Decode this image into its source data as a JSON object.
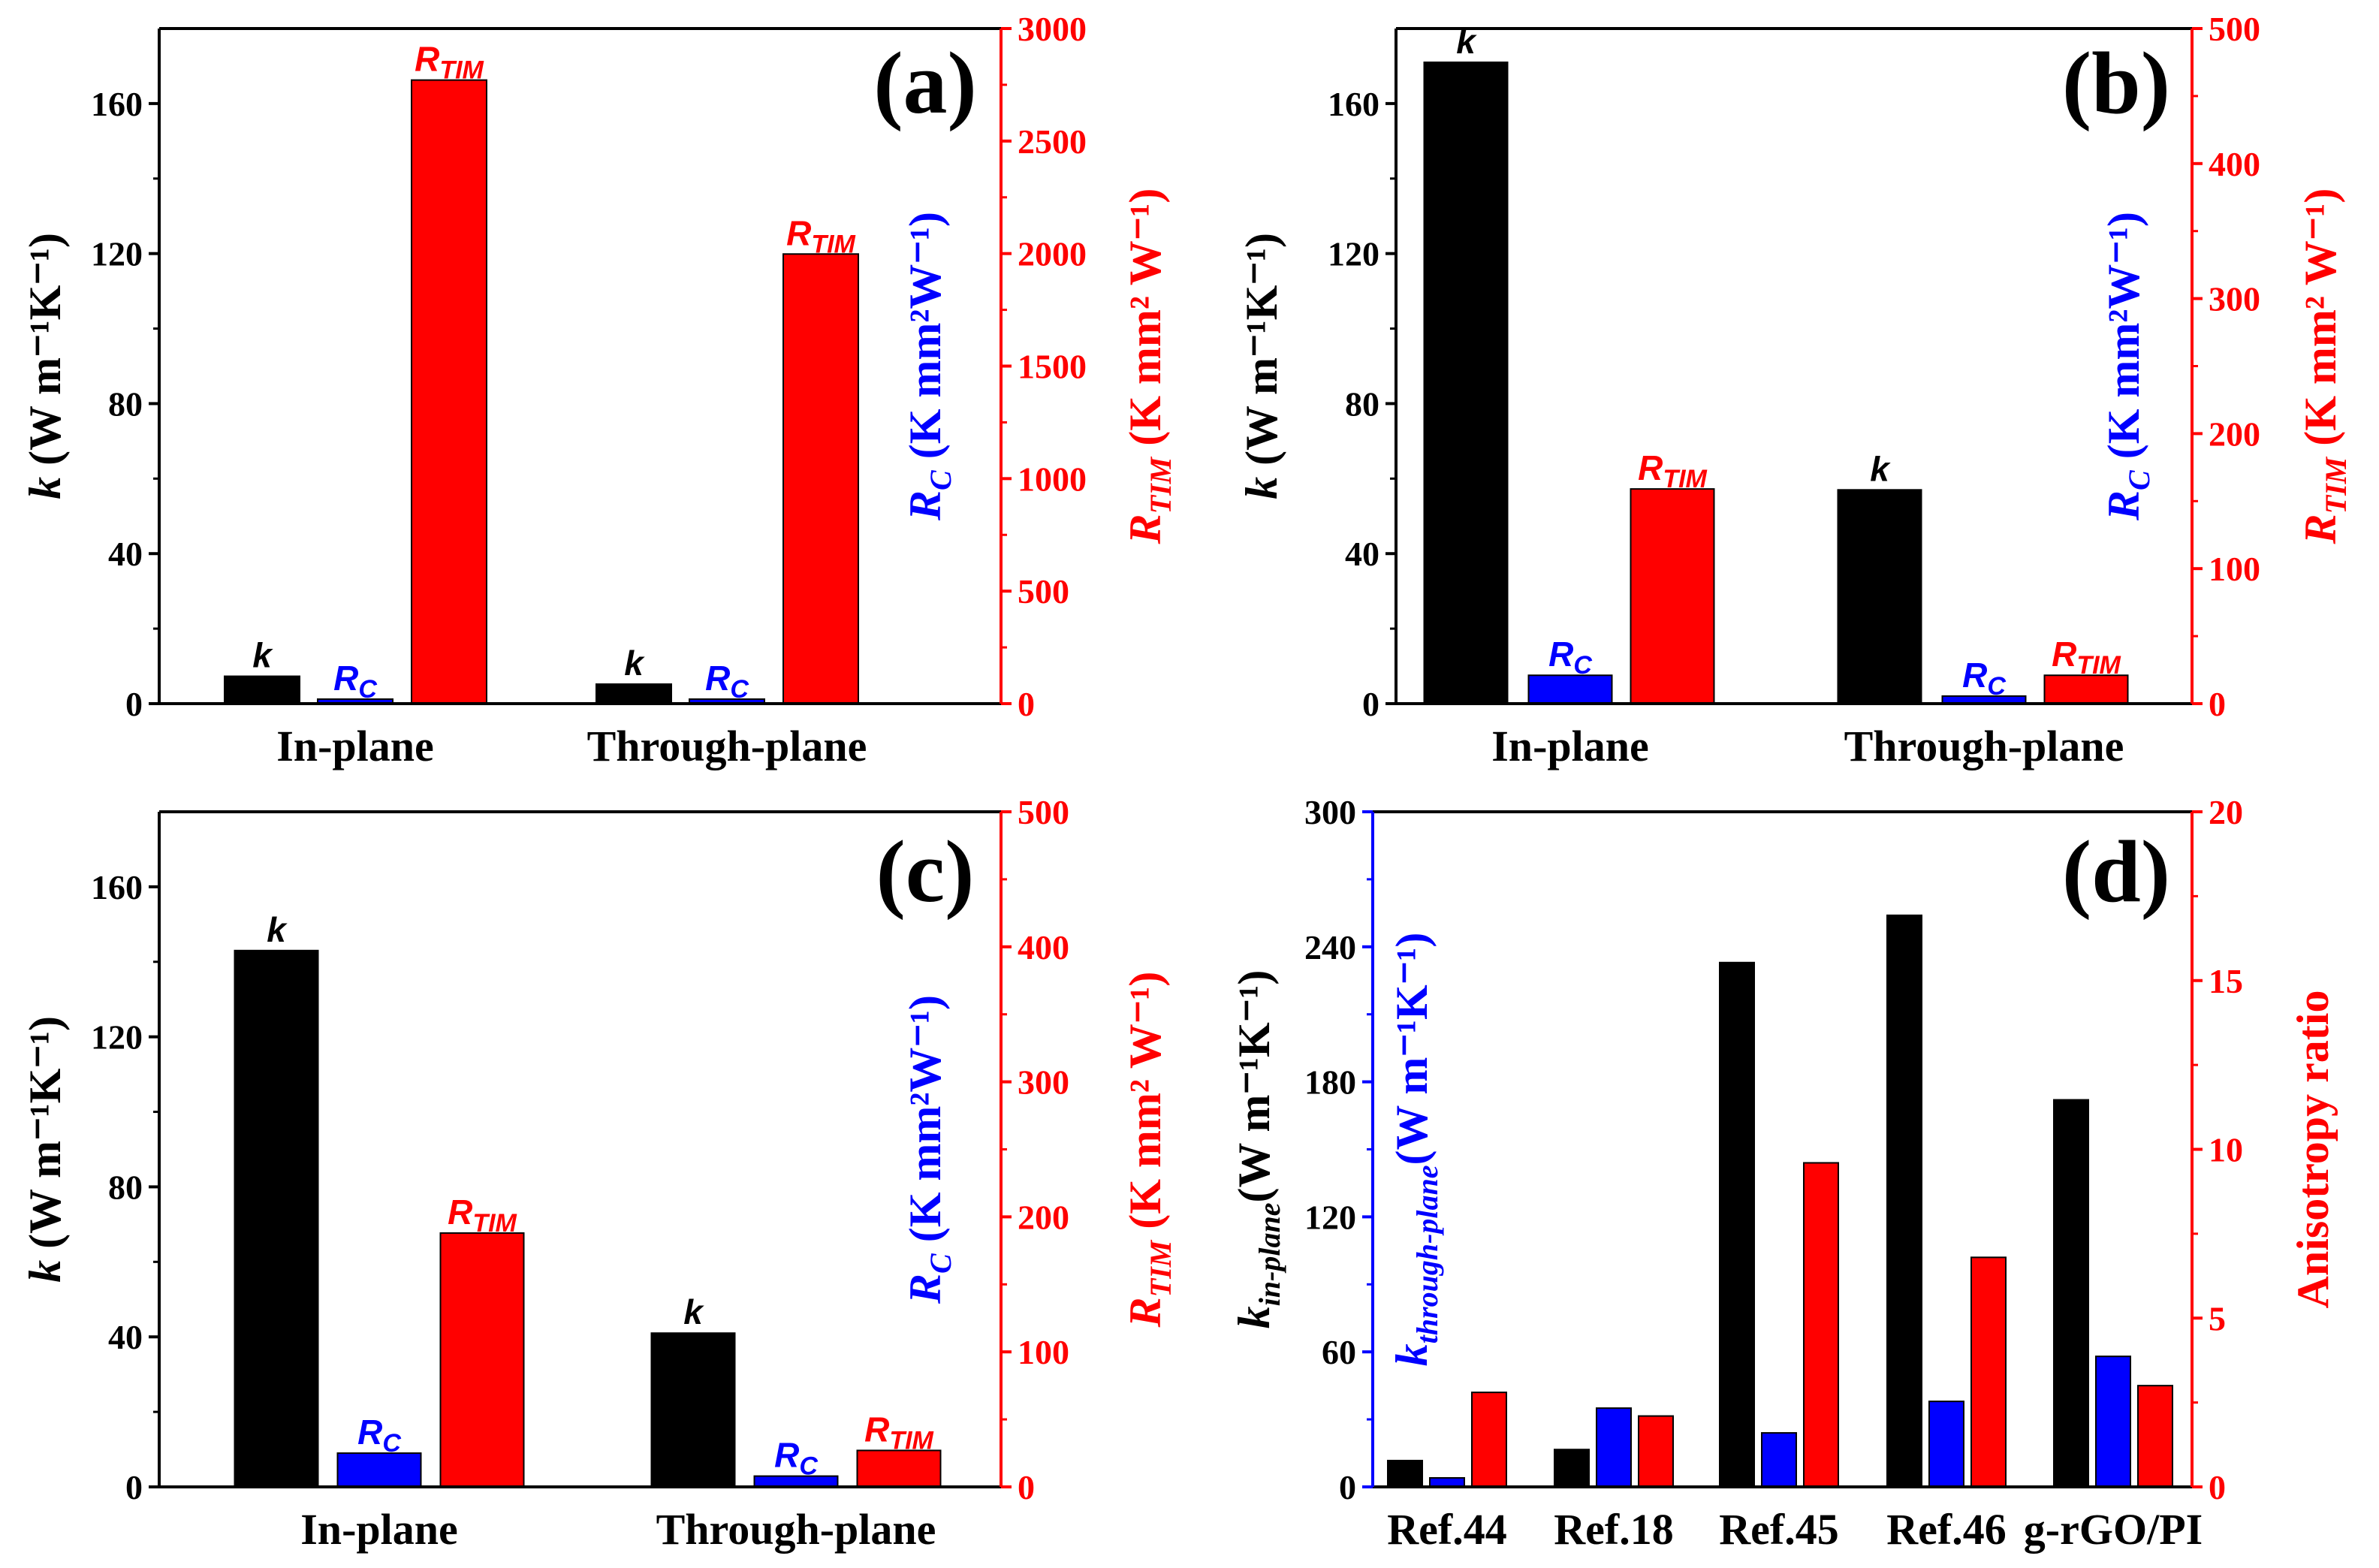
{
  "colors": {
    "k": "#000000",
    "rc": "#0000ff",
    "rtim": "#ff0000",
    "axis": "#000000"
  },
  "chart_data": [
    {
      "type": "bar",
      "panel": "(a)",
      "categories": [
        "In-plane",
        "Through-plane"
      ],
      "left_axis": {
        "title": {
          "symbol": "k",
          "subscript": "",
          "unit": " (W m⁻¹K⁻¹)"
        },
        "ylim": [
          0,
          180
        ],
        "ticks": [
          0,
          40,
          80,
          120,
          160
        ]
      },
      "right_axis": {
        "titles": [
          {
            "symbol": "R",
            "subscript": "C",
            "unit": " (K mm²W⁻¹)",
            "color": "rc"
          },
          {
            "symbol": "R",
            "subscript": "TIM",
            "unit": " (K mm² W⁻¹)",
            "color": "rtim"
          }
        ],
        "ylim": [
          0,
          3000
        ],
        "ticks": [
          0,
          500,
          1000,
          1500,
          2000,
          2500,
          3000
        ]
      },
      "series": [
        {
          "name": "k",
          "label_symbol": "k",
          "label_sub": "",
          "axis": "left",
          "color": "k",
          "values": [
            7.3,
            5.2
          ]
        },
        {
          "name": "R_C",
          "label_symbol": "R",
          "label_sub": "C",
          "axis": "right",
          "color": "rc",
          "values": [
            20,
            20
          ]
        },
        {
          "name": "R_TIM",
          "label_symbol": "R",
          "label_sub": "TIM",
          "axis": "right",
          "color": "rtim",
          "values": [
            2771,
            1998
          ]
        }
      ]
    },
    {
      "type": "bar",
      "panel": "(b)",
      "categories": [
        "In-plane",
        "Through-plane"
      ],
      "left_axis": {
        "title": {
          "symbol": "k",
          "subscript": "",
          "unit": " (W m⁻¹K⁻¹)"
        },
        "ylim": [
          0,
          180
        ],
        "ticks": [
          0,
          40,
          80,
          120,
          160
        ]
      },
      "right_axis": {
        "titles": [
          {
            "symbol": "R",
            "subscript": "C",
            "unit": " (K mm²W⁻¹)",
            "color": "rc"
          },
          {
            "symbol": "R",
            "subscript": "TIM",
            "unit": " (K mm² W⁻¹)",
            "color": "rtim"
          }
        ],
        "ylim": [
          0,
          500
        ],
        "ticks": [
          0,
          100,
          200,
          300,
          400,
          500
        ]
      },
      "series": [
        {
          "name": "k",
          "label_symbol": "k",
          "label_sub": "",
          "axis": "left",
          "color": "k",
          "values": [
            171,
            57
          ]
        },
        {
          "name": "R_C",
          "label_symbol": "R",
          "label_sub": "C",
          "axis": "right",
          "color": "rc",
          "values": [
            21,
            5.6
          ]
        },
        {
          "name": "R_TIM",
          "label_symbol": "R",
          "label_sub": "TIM",
          "axis": "right",
          "color": "rtim",
          "values": [
            159,
            21
          ]
        }
      ]
    },
    {
      "type": "bar",
      "panel": "(c)",
      "categories": [
        "In-plane",
        "Through-plane"
      ],
      "left_axis": {
        "title": {
          "symbol": "k",
          "subscript": "",
          "unit": " (W m⁻¹K⁻¹)"
        },
        "ylim": [
          0,
          180
        ],
        "ticks": [
          0,
          40,
          80,
          120,
          160
        ]
      },
      "right_axis": {
        "titles": [
          {
            "symbol": "R",
            "subscript": "C",
            "unit": " (K mm²W⁻¹)",
            "color": "rc"
          },
          {
            "symbol": "R",
            "subscript": "TIM",
            "unit": " (K mm² W⁻¹)",
            "color": "rtim"
          }
        ],
        "ylim": [
          0,
          500
        ],
        "ticks": [
          0,
          100,
          200,
          300,
          400,
          500
        ]
      },
      "series": [
        {
          "name": "k",
          "label_symbol": "k",
          "label_sub": "",
          "axis": "left",
          "color": "k",
          "values": [
            143,
            41
          ]
        },
        {
          "name": "R_C",
          "label_symbol": "R",
          "label_sub": "C",
          "axis": "right",
          "color": "rc",
          "values": [
            25,
            8
          ]
        },
        {
          "name": "R_TIM",
          "label_symbol": "R",
          "label_sub": "TIM",
          "axis": "right",
          "color": "rtim",
          "values": [
            188,
            27
          ]
        }
      ]
    },
    {
      "type": "bar",
      "panel": "(d)",
      "categories": [
        "Ref.44",
        "Ref.18",
        "Ref.45",
        "Ref.46",
        "g-rGO/PI"
      ],
      "left_axis": {
        "title": {
          "symbol": "k",
          "subscript": "in-plane",
          "unit": "(W m⁻¹K⁻¹)"
        },
        "second_title": {
          "symbol": "k",
          "subscript": "through-plane",
          "unit": "(W m⁻¹K⁻¹)"
        },
        "ylim": [
          0,
          300
        ],
        "ticks": [
          0,
          60,
          120,
          180,
          240,
          300
        ]
      },
      "right_axis": {
        "titles": [
          {
            "symbol": "",
            "subscript": "",
            "unit": "Anisotropy ratio",
            "color": "rtim"
          }
        ],
        "ylim": [
          0,
          20
        ],
        "ticks": [
          0,
          5,
          10,
          15,
          20
        ]
      },
      "series": [
        {
          "name": "k_in-plane",
          "axis": "left",
          "color": "k",
          "values": [
            11.7,
            16.6,
            233,
            254,
            172
          ]
        },
        {
          "name": "k_through-plane",
          "axis": "left",
          "color": "rc",
          "values": [
            4,
            35,
            24,
            38,
            58
          ]
        },
        {
          "name": "Anisotropy ratio",
          "axis": "right",
          "color": "rtim",
          "values": [
            2.8,
            2.1,
            9.6,
            6.8,
            3.0
          ]
        }
      ]
    }
  ]
}
